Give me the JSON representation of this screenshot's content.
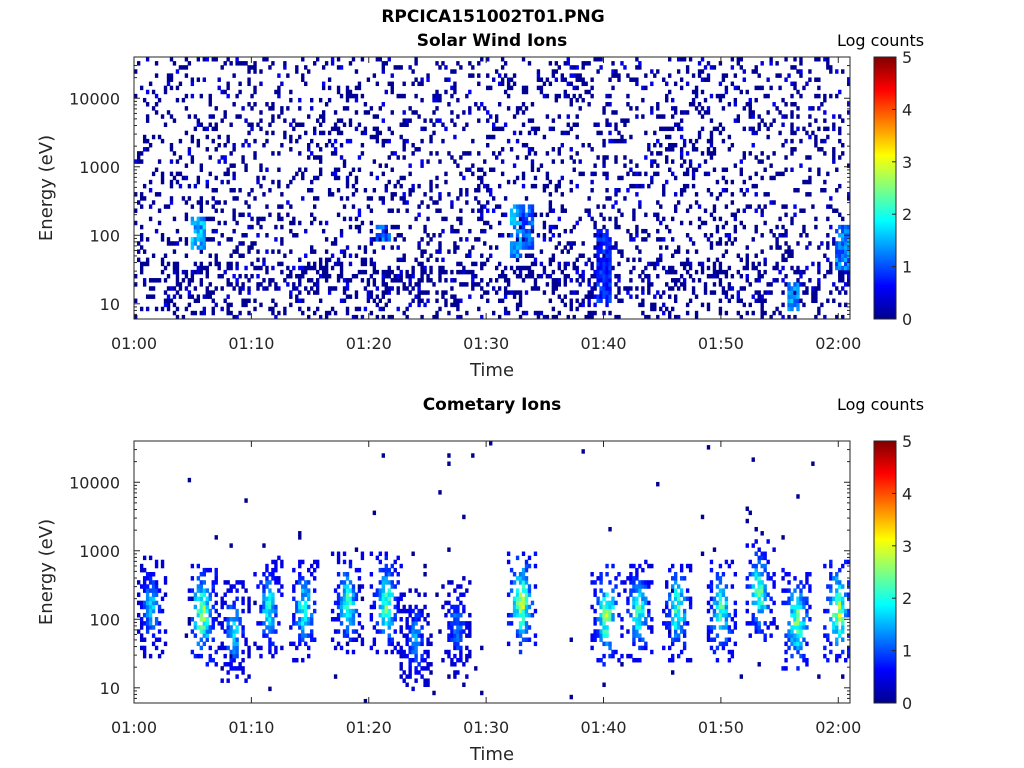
{
  "figure_title": "RPCICA151002T01.PNG",
  "colorbar": {
    "title": "Log counts",
    "ticks": [
      "0",
      "1",
      "2",
      "3",
      "4",
      "5"
    ],
    "colormap": "jet",
    "colors": [
      "#00008f",
      "#0000ff",
      "#0080ff",
      "#00ffff",
      "#80ff80",
      "#ffff00",
      "#ff8000",
      "#ff0000",
      "#800000"
    ]
  },
  "chart_data": [
    {
      "type": "heatmap",
      "title": "Solar Wind Ions",
      "xlabel": "Time",
      "ylabel": "Energy (eV)",
      "x_ticks": [
        "01:00",
        "01:10",
        "01:20",
        "01:30",
        "01:40",
        "01:50",
        "02:00"
      ],
      "x_range_minutes": [
        0,
        61
      ],
      "y_scale": "log",
      "y_ticks": [
        "10",
        "100",
        "1000",
        "10000"
      ],
      "y_range_eV": [
        6,
        40000
      ],
      "c_range_log_counts": [
        0,
        5
      ],
      "enhancements": [
        {
          "t_min": 5.5,
          "e_min": 60,
          "e_max": 200,
          "level": 1.8
        },
        {
          "t_min": 21.2,
          "e_min": 80,
          "e_max": 150,
          "level": 1.4
        },
        {
          "t_min": 32.5,
          "e_min": 50,
          "e_max": 300,
          "level": 1.6
        },
        {
          "t_min": 33.5,
          "e_min": 60,
          "e_max": 300,
          "level": 1.3
        },
        {
          "t_min": 40.0,
          "e_min": 10,
          "e_max": 120,
          "level": 1.0
        },
        {
          "t_min": 56.2,
          "e_min": 8,
          "e_max": 20,
          "level": 1.6
        },
        {
          "t_min": 60.4,
          "e_min": 30,
          "e_max": 150,
          "level": 1.5
        }
      ]
    },
    {
      "type": "heatmap",
      "title": "Cometary Ions",
      "xlabel": "Time",
      "ylabel": "Energy (eV)",
      "x_ticks": [
        "01:00",
        "01:10",
        "01:20",
        "01:30",
        "01:40",
        "01:50",
        "02:00"
      ],
      "x_range_minutes": [
        0,
        61
      ],
      "y_scale": "log",
      "y_ticks": [
        "10",
        "100",
        "1000",
        "10000"
      ],
      "y_range_eV": [
        6,
        40000
      ],
      "c_range_log_counts": [
        0,
        5
      ],
      "bursts": [
        {
          "t_min": 1.5,
          "e_peak": 150,
          "level": 1.5
        },
        {
          "t_min": 5.8,
          "e_peak": 120,
          "level": 2.5
        },
        {
          "t_min": 8.5,
          "e_peak": 70,
          "level": 1.6
        },
        {
          "t_min": 11.5,
          "e_peak": 150,
          "level": 1.8
        },
        {
          "t_min": 14.5,
          "e_peak": 140,
          "level": 1.9
        },
        {
          "t_min": 18.2,
          "e_peak": 180,
          "level": 2.0
        },
        {
          "t_min": 21.5,
          "e_peak": 170,
          "level": 2.2
        },
        {
          "t_min": 24.0,
          "e_peak": 50,
          "level": 1.3
        },
        {
          "t_min": 27.5,
          "e_peak": 80,
          "level": 1.2
        },
        {
          "t_min": 33.0,
          "e_peak": 180,
          "level": 2.6
        },
        {
          "t_min": 40.3,
          "e_peak": 110,
          "level": 2.4
        },
        {
          "t_min": 43.0,
          "e_peak": 130,
          "level": 2.0
        },
        {
          "t_min": 46.3,
          "e_peak": 140,
          "level": 2.1
        },
        {
          "t_min": 50.0,
          "e_peak": 130,
          "level": 2.2
        },
        {
          "t_min": 53.3,
          "e_peak": 250,
          "level": 2.2
        },
        {
          "t_min": 56.5,
          "e_peak": 100,
          "level": 2.4
        },
        {
          "t_min": 60.0,
          "e_peak": 140,
          "level": 2.6
        }
      ]
    }
  ]
}
